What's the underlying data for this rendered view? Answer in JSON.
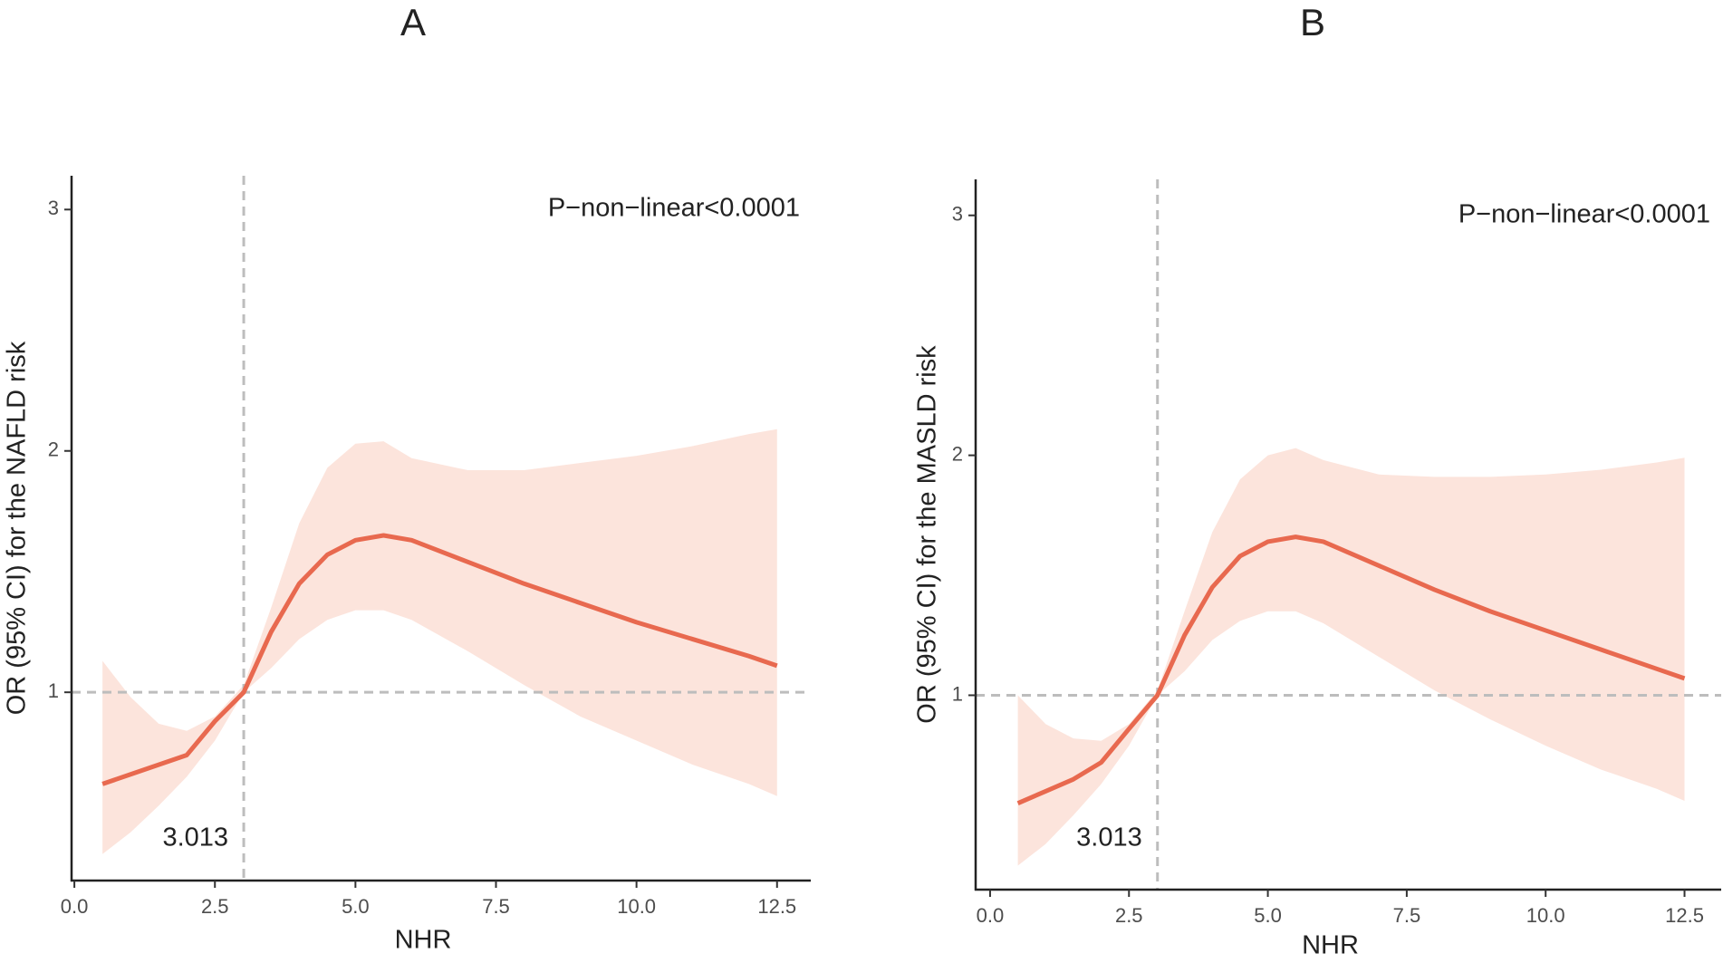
{
  "chart_data": [
    {
      "type": "line",
      "title": "A",
      "x_label": "NHR",
      "y_label": "OR (95% CI) for the NAFLD risk",
      "annotations": [
        "P−non−linear<0.0001",
        "3.013"
      ],
      "xref": 3.013,
      "yref": 1,
      "x": [
        0.5,
        1,
        1.5,
        2,
        2.5,
        3.013,
        3.5,
        4,
        4.5,
        5,
        5.5,
        6,
        7,
        8,
        9,
        10,
        11,
        12,
        12.5
      ],
      "series": [
        {
          "color": "#e8694f",
          "band_color": "#fce4dc",
          "values": [
            0.62,
            0.66,
            0.7,
            0.74,
            0.88,
            1.0,
            1.25,
            1.45,
            1.57,
            1.63,
            1.65,
            1.63,
            1.54,
            1.45,
            1.37,
            1.29,
            1.22,
            1.15,
            1.11
          ],
          "lower": [
            0.33,
            0.42,
            0.53,
            0.65,
            0.8,
            1.0,
            1.1,
            1.22,
            1.3,
            1.34,
            1.34,
            1.3,
            1.17,
            1.03,
            0.9,
            0.8,
            0.7,
            0.62,
            0.57
          ],
          "upper": [
            1.13,
            0.98,
            0.87,
            0.84,
            0.9,
            1.03,
            1.35,
            1.7,
            1.93,
            2.03,
            2.04,
            1.97,
            1.92,
            1.92,
            1.95,
            1.98,
            2.02,
            2.07,
            2.09
          ]
        }
      ],
      "xlim": [
        -0.05,
        13.1
      ],
      "ylim": [
        0.22,
        3.14
      ],
      "xticks": [
        {
          "value": 0,
          "label": "0.0"
        },
        2.5,
        {
          "value": 5,
          "label": "5.0"
        },
        7.5,
        {
          "value": 10,
          "label": "10.0"
        },
        12.5
      ],
      "yticks": [
        1,
        2,
        3
      ]
    },
    {
      "type": "line",
      "title": "B",
      "x_label": "NHR",
      "y_label": "OR (95% CI) for the MASLD risk",
      "annotations": [
        "P−non−linear<0.0001",
        "3.013"
      ],
      "xref": 3.013,
      "yref": 1,
      "x": [
        0.5,
        1,
        1.5,
        2,
        2.5,
        3.013,
        3.5,
        4,
        4.5,
        5,
        5.5,
        6,
        7,
        8,
        9,
        10,
        11,
        12,
        12.5
      ],
      "series": [
        {
          "color": "#e8694f",
          "band_color": "#fce4dc",
          "values": [
            0.55,
            0.6,
            0.65,
            0.72,
            0.86,
            1.0,
            1.25,
            1.45,
            1.58,
            1.64,
            1.66,
            1.64,
            1.54,
            1.44,
            1.35,
            1.27,
            1.19,
            1.11,
            1.07
          ],
          "lower": [
            0.29,
            0.38,
            0.5,
            0.63,
            0.79,
            1.0,
            1.1,
            1.23,
            1.31,
            1.35,
            1.35,
            1.3,
            1.16,
            1.02,
            0.9,
            0.79,
            0.69,
            0.61,
            0.56
          ],
          "upper": [
            1.0,
            0.88,
            0.82,
            0.81,
            0.88,
            1.02,
            1.35,
            1.68,
            1.9,
            2.0,
            2.03,
            1.98,
            1.92,
            1.91,
            1.91,
            1.92,
            1.94,
            1.97,
            1.99
          ]
        }
      ],
      "xlim": [
        -0.26,
        13.16
      ],
      "ylim": [
        0.19,
        3.15
      ],
      "xticks": [
        {
          "value": 0,
          "label": "0.0"
        },
        2.5,
        {
          "value": 5,
          "label": "5.0"
        },
        7.5,
        {
          "value": 10,
          "label": "10.0"
        },
        12.5
      ],
      "yticks": [
        1,
        2,
        3
      ]
    }
  ]
}
